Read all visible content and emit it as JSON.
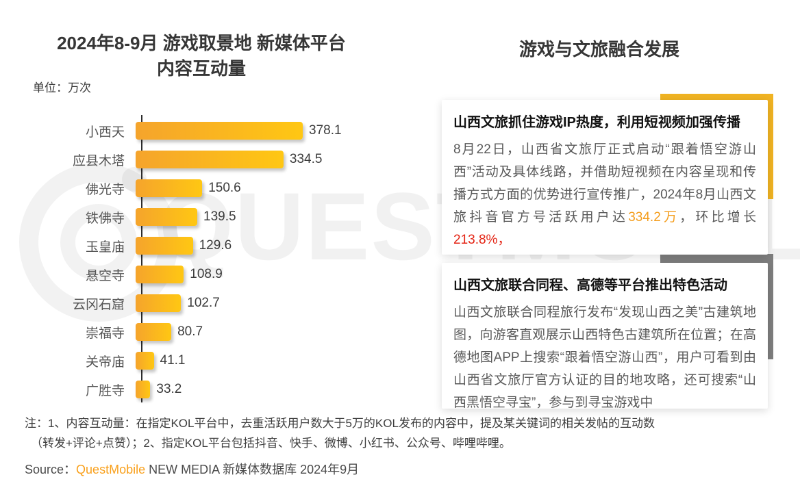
{
  "left_chart": {
    "title_line1": "2024年8-9月 游戏取景地 新媒体平台",
    "title_line2": "内容互动量",
    "unit_label": "单位：万次"
  },
  "chart_data": {
    "type": "bar",
    "orientation": "horizontal",
    "title": "2024年8-9月 游戏取景地 新媒体平台 内容互动量",
    "unit": "万次",
    "categories": [
      "小西天",
      "应县木塔",
      "佛光寺",
      "铁佛寺",
      "玉皇庙",
      "悬空寺",
      "云冈石窟",
      "崇福寺",
      "关帝庙",
      "广胜寺"
    ],
    "values": [
      378.1,
      334.5,
      150.6,
      139.5,
      129.6,
      108.9,
      102.7,
      80.7,
      41.1,
      33.2
    ],
    "xlim": [
      0,
      400
    ],
    "grid": false,
    "value_labels": "end-of-bar"
  },
  "right_panel": {
    "title": "游戏与文旅融合发展",
    "cards": [
      {
        "accent_color": "#F0B323",
        "title": "山西文旅抓住游戏IP热度，利用短视频加强传播",
        "body_parts": [
          {
            "text": "8月22日，山西省文旅厅正式启动“跟着悟空游山西”活动及具体线路，并借助短视频在内容呈现和传播方式方面的优势进行宣传推广，2024年8月山西文旅抖音官方号活跃用户达",
            "style": "normal"
          },
          {
            "text": "334.2万",
            "style": "orange"
          },
          {
            "text": "，环比增长",
            "style": "normal"
          },
          {
            "text": "213.8%，",
            "style": "red"
          }
        ]
      },
      {
        "accent_color": "#7E7E7E",
        "title": "山西文旅联合同程、高德等平台推出特色活动",
        "body_parts": [
          {
            "text": "山西文旅联合同程旅行发布“发现山西之美”古建筑地图，向游客直观展示山西特色古建筑所在位置；在高德地图APP上搜索“跟着悟空游山西”，用户可看到由山西省文旅厅官方认证的目的地攻略，还可搜索“山西黑悟空寻宝”，参与到寻宝游戏中",
            "style": "normal"
          }
        ]
      }
    ]
  },
  "footnote": {
    "line1": "注：1、内容互动量：在指定KOL平台中，去重活跃用户数大于5万的KOL发布的内容中，提及某关键词的相关发帖的互动数",
    "line2": "（转发+评论+点赞）；2、指定KOL平台包括抖音、快手、微博、小红书、公众号、哔哩哔哩。"
  },
  "source": {
    "prefix": "Source：",
    "brand": "QuestMobile",
    "suffix": " NEW MEDIA 新媒体数据库 2024年9月"
  },
  "watermark": {
    "text": "QUESTMOBILE"
  },
  "colors": {
    "bar_gradient_start": "#F5A42C",
    "bar_gradient_end": "#FFC713",
    "accent_yellow": "#F0B323",
    "accent_gray": "#7E7E7E",
    "orange": "#F49D1C",
    "red": "#E42313",
    "brand_orange": "#F9A01B",
    "normal": "#595959"
  }
}
